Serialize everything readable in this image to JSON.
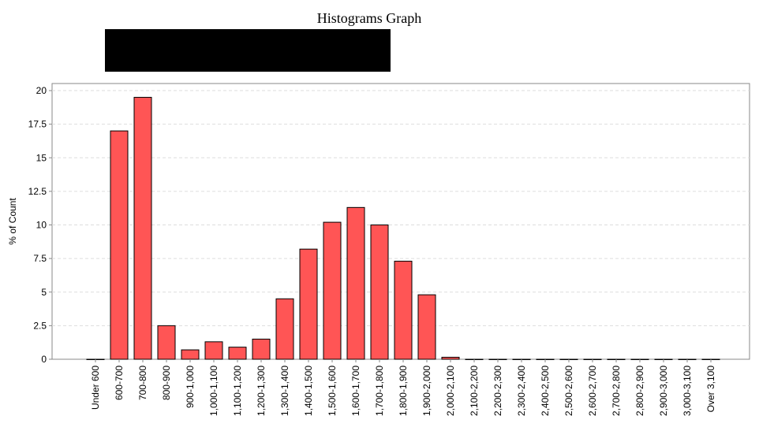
{
  "title": "Histograms Graph",
  "redacted_block": "black-redaction-box",
  "chart_data": {
    "type": "bar",
    "title": "Histograms Graph",
    "xlabel": "",
    "ylabel": "% of Count",
    "ylim": [
      0,
      20
    ],
    "yticks": [
      "0",
      "2.5",
      "5",
      "7.5",
      "10",
      "12.5",
      "15",
      "17.5",
      "20"
    ],
    "grid": true,
    "bar_color": "#ff5555",
    "categories": [
      "Under 600",
      "600-700",
      "700-800",
      "800-900",
      "900-1,000",
      "1,000-1,100",
      "1,100-1,200",
      "1,200-1,300",
      "1,300-1,400",
      "1,400-1,500",
      "1,500-1,600",
      "1,600-1,700",
      "1,700-1,800",
      "1,800-1,900",
      "1,900-2,000",
      "2,000-2,100",
      "2,100-2,200",
      "2,200-2,300",
      "2,300-2,400",
      "2,400-2,500",
      "2,500-2,600",
      "2,600-2,700",
      "2,700-2,800",
      "2,800-2,900",
      "2,900-3,000",
      "3,000-3,100",
      "Over 3,100"
    ],
    "values": [
      0,
      17,
      19.5,
      2.5,
      0.7,
      1.3,
      0.9,
      1.5,
      4.5,
      8.2,
      10.2,
      11.3,
      10,
      7.3,
      4.8,
      0.15,
      0,
      0,
      0,
      0,
      0,
      0,
      0,
      0,
      0,
      0,
      0
    ]
  }
}
